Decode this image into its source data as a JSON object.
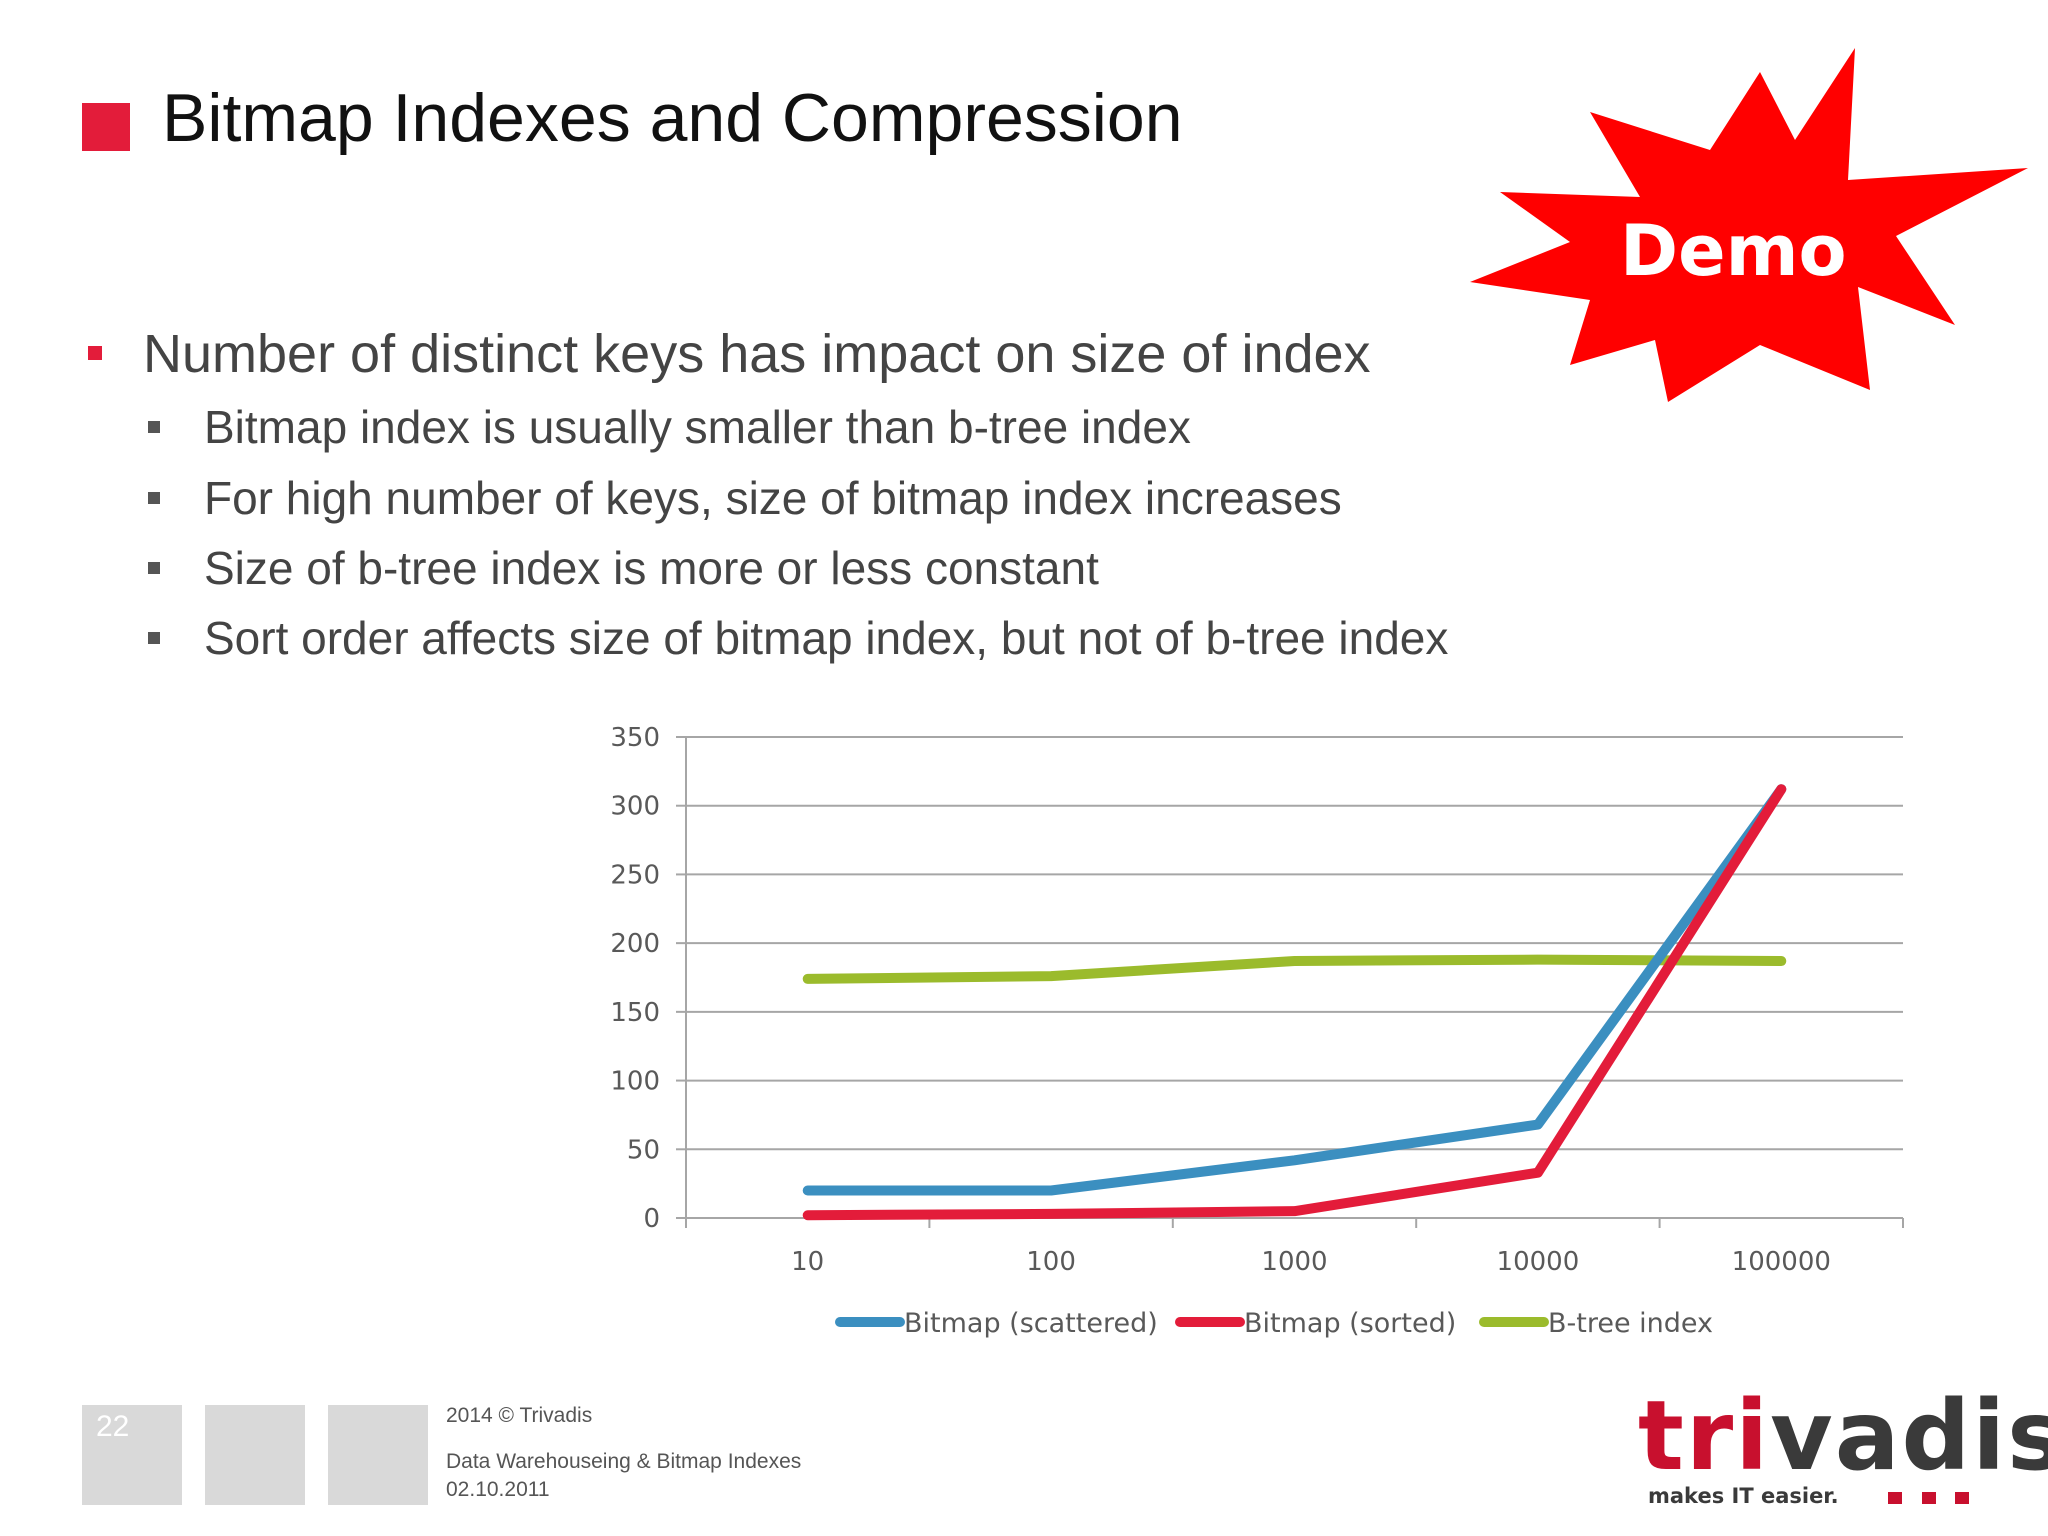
{
  "slide": {
    "title": "Bitmap Indexes and Compression",
    "accent_color": "#e31c3a",
    "badge": "Demo",
    "badge_color": "#ff0000",
    "bullet_main": "Number of distinct keys has impact on size of index",
    "sub_bullets": [
      "Bitmap index is usually smaller than b-tree index",
      "For high number of keys, size of bitmap index increases",
      "Size of b-tree index is more or less constant",
      "Sort order affects size of bitmap index, but not of b-tree index"
    ]
  },
  "footer": {
    "page_number": "22",
    "copyright": "2014 © Trivadis",
    "subtitle": "Data Warehouseing & Bitmap Indexes",
    "date": "02.10.2011",
    "logo_prefix": "tri",
    "logo_suffix": "vadis",
    "tagline": "makes IT easier."
  },
  "chart_data": {
    "type": "line",
    "categories": [
      "10",
      "100",
      "1000",
      "10000",
      "100000"
    ],
    "series": [
      {
        "name": "Bitmap (scattered)",
        "color": "#3b8fc0",
        "values": [
          20,
          20,
          42,
          68,
          312
        ]
      },
      {
        "name": "Bitmap (sorted)",
        "color": "#e31c3a",
        "values": [
          2,
          3,
          5,
          33,
          312
        ]
      },
      {
        "name": "B-tree index",
        "color": "#9bbb2c",
        "values": [
          174,
          176,
          187,
          188,
          187
        ]
      }
    ],
    "ylim": [
      0,
      350
    ],
    "yticks": [
      0,
      50,
      100,
      150,
      200,
      250,
      300,
      350
    ],
    "grid": true,
    "legend": "bottom"
  }
}
